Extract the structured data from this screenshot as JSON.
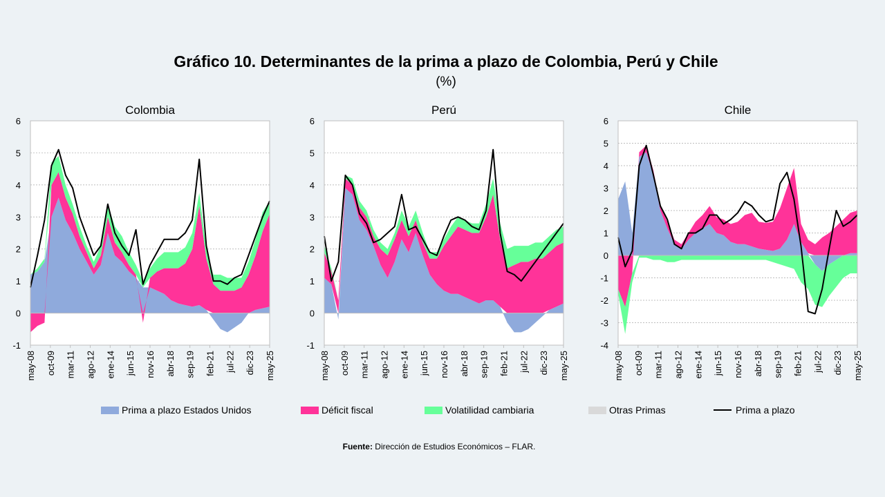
{
  "header": {
    "title": "Gráfico 10. Determinantes de la prima a plazo de Colombia, Perú y Chile",
    "subtitle": "(%)"
  },
  "legend": [
    {
      "label": "Prima a plazo Estados Unidos",
      "color": "#8faadc",
      "kind": "area"
    },
    {
      "label": "Déficit fiscal",
      "color": "#ff3399",
      "kind": "area"
    },
    {
      "label": "Volatilidad cambiaria",
      "color": "#66ff99",
      "kind": "area"
    },
    {
      "label": "Otras Primas",
      "color": "#d9d9d9",
      "kind": "area"
    },
    {
      "label": "Prima a plazo",
      "color": "#000000",
      "kind": "line"
    }
  ],
  "source": {
    "label": "Fuente:",
    "text": " Dirección de Estudios Económicos – FLAR."
  },
  "chart_data": [
    {
      "type": "area",
      "title": "Colombia",
      "ylim": [
        -1,
        6
      ],
      "yticks": [
        -1,
        0,
        1,
        2,
        3,
        4,
        5,
        6
      ],
      "xtick_labels": [
        "may-08",
        "oct-09",
        "mar-11",
        "ago-12",
        "ene-14",
        "jun-15",
        "nov-16",
        "abr-18",
        "sep-19",
        "feb-21",
        "jul-22",
        "dic-23",
        "may-25"
      ],
      "x": [
        0,
        6,
        12,
        18,
        24,
        30,
        36,
        42,
        48,
        54,
        60,
        66,
        72,
        78,
        84,
        90,
        96,
        102,
        108,
        114,
        120,
        126,
        132,
        138,
        144,
        150,
        156,
        162,
        168,
        174,
        180,
        186,
        192,
        198,
        204
      ],
      "series": [
        {
          "name": "Prima a plazo Estados Unidos",
          "values": [
            1.2,
            1.3,
            1.6,
            3.0,
            3.6,
            2.9,
            2.5,
            2.0,
            1.6,
            1.2,
            1.5,
            2.5,
            1.8,
            1.6,
            1.3,
            1.1,
            0.8,
            0.8,
            0.7,
            0.6,
            0.4,
            0.3,
            0.25,
            0.2,
            0.25,
            0.1,
            -0.2,
            -0.5,
            -0.6,
            -0.45,
            -0.3,
            0.0,
            0.1,
            0.15,
            0.2
          ]
        },
        {
          "name": "Déficit fiscal",
          "values": [
            -0.6,
            -0.4,
            -0.3,
            1.0,
            0.8,
            0.7,
            0.6,
            0.4,
            0.3,
            0.2,
            0.3,
            0.5,
            0.4,
            0.3,
            0.2,
            0.1,
            -0.3,
            0.3,
            0.6,
            0.8,
            1.0,
            1.1,
            1.3,
            1.8,
            3.1,
            1.6,
            0.9,
            0.7,
            0.7,
            0.7,
            0.8,
            1.2,
            1.7,
            2.4,
            2.9
          ]
        },
        {
          "name": "Volatilidad cambiaria",
          "values": [
            0.0,
            0.1,
            0.1,
            0.7,
            0.5,
            0.4,
            0.3,
            0.3,
            0.2,
            0.2,
            0.3,
            0.4,
            0.5,
            0.5,
            0.4,
            0.3,
            0.2,
            0.3,
            0.4,
            0.5,
            0.5,
            0.5,
            0.5,
            0.5,
            0.4,
            0.3,
            0.3,
            0.5,
            0.4,
            0.4,
            0.3,
            0.4,
            0.5,
            0.6,
            0.4
          ]
        },
        {
          "name": "Otras Primas",
          "values": [
            0,
            0,
            0,
            0,
            0,
            0,
            0,
            0,
            0,
            0,
            0,
            0,
            0,
            0,
            0,
            0,
            0,
            0,
            0,
            0,
            0,
            0,
            0,
            0,
            0,
            0,
            0,
            0,
            0,
            0,
            0,
            0,
            0,
            0,
            0
          ]
        },
        {
          "name": "Prima a plazo",
          "values": [
            0.8,
            1.8,
            2.9,
            4.6,
            5.1,
            4.3,
            3.9,
            3.0,
            2.4,
            1.8,
            2.1,
            3.4,
            2.5,
            2.1,
            1.8,
            2.6,
            0.9,
            1.5,
            1.9,
            2.3,
            2.3,
            2.3,
            2.5,
            2.9,
            4.8,
            2.1,
            1.0,
            1.0,
            0.9,
            1.1,
            1.2,
            1.8,
            2.4,
            3.0,
            3.5
          ]
        }
      ]
    },
    {
      "type": "area",
      "title": "Perú",
      "ylim": [
        -1,
        6
      ],
      "yticks": [
        -1,
        0,
        1,
        2,
        3,
        4,
        5,
        6
      ],
      "xtick_labels": [
        "may-08",
        "oct-09",
        "mar-11",
        "ago-12",
        "ene-14",
        "jun-15",
        "nov-16",
        "abr-18",
        "sep-19",
        "feb-21",
        "jul-22",
        "dic-23",
        "may-25"
      ],
      "x": [
        0,
        6,
        12,
        18,
        24,
        30,
        36,
        42,
        48,
        54,
        60,
        66,
        72,
        78,
        84,
        90,
        96,
        102,
        108,
        114,
        120,
        126,
        132,
        138,
        144,
        150,
        156,
        162,
        168,
        174,
        180,
        186,
        192,
        198,
        204
      ],
      "series": [
        {
          "name": "Prima a plazo Estados Unidos",
          "values": [
            1.1,
            0.9,
            -0.2,
            3.9,
            3.7,
            2.9,
            2.6,
            2.1,
            1.5,
            1.1,
            1.6,
            2.3,
            1.9,
            2.5,
            1.8,
            1.2,
            0.9,
            0.7,
            0.6,
            0.6,
            0.5,
            0.4,
            0.3,
            0.4,
            0.4,
            0.2,
            -0.3,
            -0.6,
            -0.6,
            -0.5,
            -0.3,
            -0.1,
            0.1,
            0.2,
            0.3
          ]
        },
        {
          "name": "Déficit fiscal",
          "values": [
            0.8,
            0.4,
            0.4,
            0.3,
            0.3,
            0.4,
            0.4,
            0.3,
            0.5,
            0.7,
            0.7,
            0.6,
            0.5,
            0.4,
            0.4,
            0.5,
            0.8,
            1.4,
            1.8,
            2.1,
            2.1,
            2.1,
            2.2,
            2.6,
            3.3,
            2.1,
            1.4,
            1.5,
            1.6,
            1.6,
            1.7,
            1.7,
            1.8,
            1.9,
            1.9
          ]
        },
        {
          "name": "Volatilidad cambiaria",
          "values": [
            0.2,
            0.1,
            0.0,
            0.1,
            0.2,
            0.2,
            0.2,
            0.2,
            0.2,
            0.2,
            0.2,
            0.3,
            0.3,
            0.3,
            0.3,
            0.2,
            0.2,
            0.2,
            0.3,
            0.3,
            0.3,
            0.3,
            0.3,
            0.4,
            0.5,
            0.5,
            0.6,
            0.6,
            0.5,
            0.5,
            0.5,
            0.5,
            0.5,
            0.5,
            0.5
          ]
        },
        {
          "name": "Otras Primas",
          "values": [
            0,
            0,
            0,
            0,
            0,
            0,
            0,
            0,
            0,
            0,
            0,
            0,
            0,
            0,
            0,
            0,
            0,
            0,
            0,
            0,
            0,
            0,
            0,
            0,
            0,
            0,
            0,
            0,
            0,
            0,
            0,
            0,
            0,
            0,
            0
          ]
        },
        {
          "name": "Prima a plazo",
          "values": [
            2.4,
            1.0,
            1.6,
            4.3,
            4.0,
            3.1,
            2.8,
            2.2,
            2.3,
            2.5,
            2.7,
            3.7,
            2.6,
            2.7,
            2.3,
            1.9,
            1.8,
            2.4,
            2.9,
            3.0,
            2.9,
            2.7,
            2.6,
            3.2,
            5.1,
            2.5,
            1.3,
            1.2,
            1.0,
            1.3,
            1.6,
            1.9,
            2.2,
            2.5,
            2.8
          ]
        }
      ]
    },
    {
      "type": "area",
      "title": "Chile",
      "ylim": [
        -4,
        6
      ],
      "yticks": [
        -4,
        -3,
        -2,
        -1,
        0,
        1,
        2,
        3,
        4,
        5,
        6
      ],
      "xtick_labels": [
        "may-08",
        "oct-09",
        "mar-11",
        "ago-12",
        "ene-14",
        "jun-15",
        "nov-16",
        "abr-18",
        "sep-19",
        "feb-21",
        "jul-22",
        "dic-23",
        "may-25"
      ],
      "x": [
        0,
        6,
        12,
        18,
        24,
        30,
        36,
        42,
        48,
        54,
        60,
        66,
        72,
        78,
        84,
        90,
        96,
        102,
        108,
        114,
        120,
        126,
        132,
        138,
        144,
        150,
        156,
        162,
        168,
        174,
        180,
        186,
        192,
        198,
        204
      ],
      "series": [
        {
          "name": "Prima a plazo Estados Unidos",
          "values": [
            2.5,
            3.3,
            1.0,
            4.4,
            4.6,
            3.6,
            2.0,
            1.2,
            0.5,
            0.3,
            0.7,
            1.0,
            1.2,
            1.4,
            1.0,
            0.9,
            0.6,
            0.5,
            0.5,
            0.4,
            0.3,
            0.25,
            0.2,
            0.3,
            0.7,
            1.4,
            0.6,
            0.1,
            -0.4,
            -0.7,
            -0.4,
            -0.2,
            0.0,
            0.1,
            0.1
          ]
        },
        {
          "name": "Déficit fiscal",
          "values": [
            -1.5,
            -2.3,
            -0.8,
            0.2,
            0.3,
            0.2,
            0.2,
            0.3,
            0.2,
            0.2,
            0.3,
            0.5,
            0.6,
            0.8,
            0.7,
            0.7,
            0.8,
            1.0,
            1.3,
            1.5,
            1.2,
            1.2,
            1.3,
            1.8,
            2.3,
            2.5,
            0.8,
            0.6,
            0.5,
            0.8,
            1.0,
            1.3,
            1.6,
            1.8,
            1.9
          ]
        },
        {
          "name": "Volatilidad cambiaria",
          "values": [
            -0.2,
            -1.2,
            -0.4,
            -0.1,
            -0.1,
            -0.2,
            -0.2,
            -0.3,
            -0.3,
            -0.2,
            -0.2,
            -0.2,
            -0.2,
            -0.2,
            -0.2,
            -0.2,
            -0.2,
            -0.2,
            -0.2,
            -0.2,
            -0.2,
            -0.2,
            -0.3,
            -0.4,
            -0.5,
            -0.6,
            -1.2,
            -1.5,
            -1.8,
            -1.6,
            -1.4,
            -1.2,
            -1.0,
            -0.8,
            -0.8
          ]
        },
        {
          "name": "Otras Primas",
          "values": [
            0,
            0,
            0,
            0,
            0,
            0,
            0,
            0,
            0,
            0,
            0,
            0,
            0,
            0,
            0,
            0,
            0,
            0,
            0,
            0,
            0,
            0,
            0,
            0,
            0,
            0,
            0,
            0,
            0,
            0,
            0,
            0,
            0,
            0,
            0
          ]
        },
        {
          "name": "Prima a plazo",
          "values": [
            0.8,
            -0.5,
            0.2,
            4.0,
            4.9,
            3.6,
            2.2,
            1.6,
            0.5,
            0.3,
            1.0,
            1.0,
            1.2,
            1.8,
            1.8,
            1.4,
            1.6,
            1.9,
            2.4,
            2.2,
            1.8,
            1.5,
            1.6,
            3.2,
            3.7,
            2.5,
            0.4,
            -2.5,
            -2.6,
            -1.5,
            0.3,
            2.0,
            1.3,
            1.5,
            1.8
          ]
        }
      ]
    }
  ]
}
